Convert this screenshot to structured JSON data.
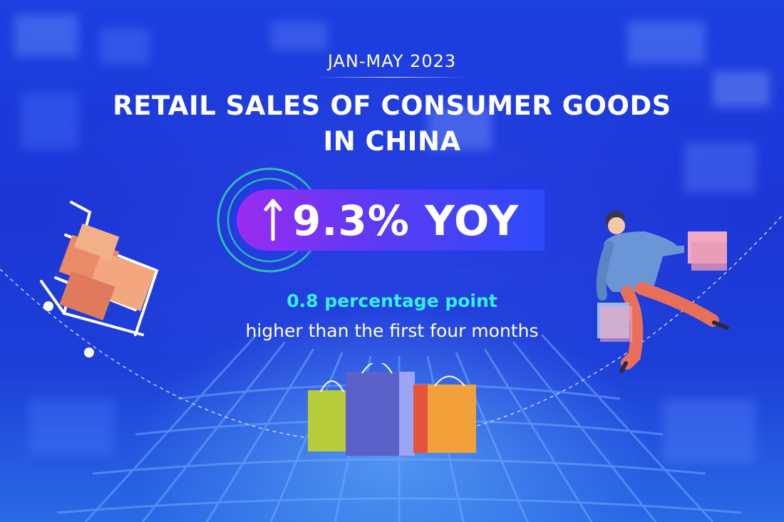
{
  "header": {
    "period": "JAN-MAY 2023",
    "title_line1": "RETAIL SALES OF CONSUMER GOODS",
    "title_line2": "IN CHINA"
  },
  "headline": {
    "value_text": "9.3% YOY",
    "direction_icon": "up-arrow-icon"
  },
  "note": {
    "highlight": "0.8 percentage point",
    "detail": "higher than the first four months"
  },
  "colors": {
    "background": "#1d36d6",
    "accent_cyan": "#36f0ef",
    "pill_start": "#9a2cf0",
    "pill_end": "#2c4bf8",
    "ring": "#2fd6a8"
  },
  "illustrations": [
    "shopping-cart-icon",
    "shopper-with-bags-icon",
    "shopping-bags-icon"
  ]
}
